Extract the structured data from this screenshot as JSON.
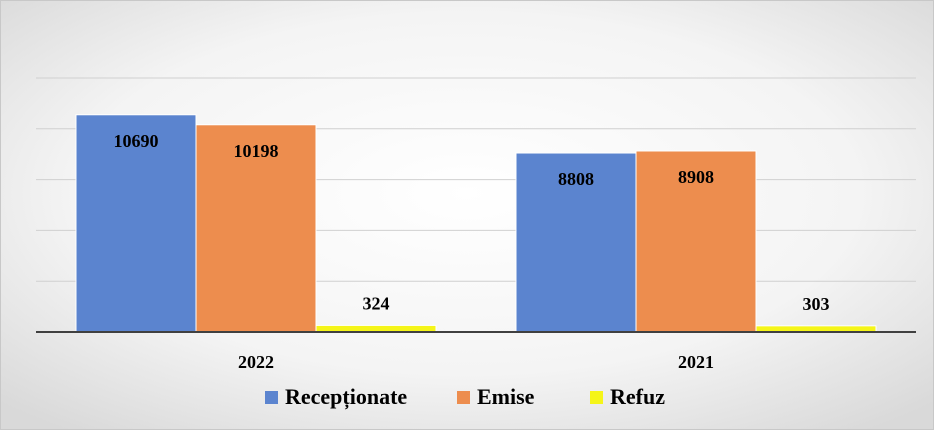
{
  "chart_data": {
    "type": "bar",
    "categories": [
      "2022",
      "2021"
    ],
    "series": [
      {
        "name": "Recepționate",
        "color": "#5b84cf",
        "values": [
          10690,
          8808
        ]
      },
      {
        "name": "Emise",
        "color": "#ed8d4e",
        "values": [
          10198,
          8908
        ]
      },
      {
        "name": "Refuz",
        "color": "#f5f518",
        "values": [
          324,
          303
        ]
      }
    ],
    "ylim": [
      0,
      12500
    ],
    "yticks": [
      0,
      2500,
      5000,
      7500,
      10000,
      12500
    ],
    "grid": true,
    "legend": "bottom"
  }
}
